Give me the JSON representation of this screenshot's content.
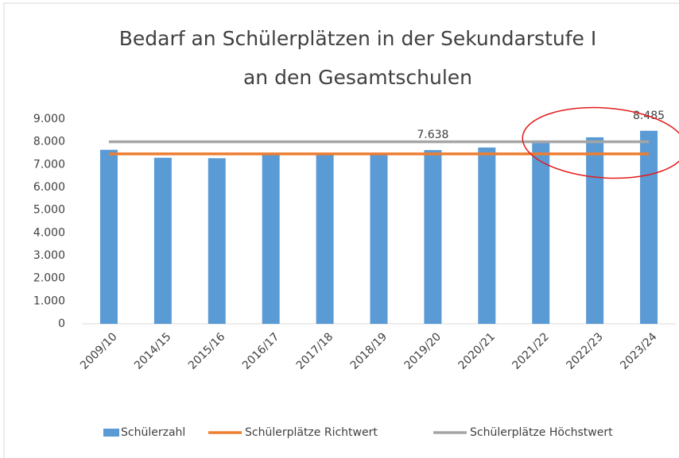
{
  "chart_data": {
    "type": "bar",
    "title": [
      "Bedarf an Schülerplätzen in der Sekundarstufe I",
      "an den Gesamtschulen"
    ],
    "categories": [
      "2009/10",
      "2014/15",
      "2015/16",
      "2016/17",
      "2017/18",
      "2018/19",
      "2019/20",
      "2020/21",
      "2021/22",
      "2022/23",
      "2023/24"
    ],
    "series": [
      {
        "name": "Schülerzahl",
        "type": "bar",
        "color": "#5b9bd5",
        "values": [
          7650,
          7300,
          7280,
          7450,
          7450,
          7450,
          7638,
          7750,
          7950,
          8200,
          8485
        ],
        "value_labels": [
          null,
          null,
          null,
          null,
          null,
          null,
          "7.638",
          null,
          null,
          null,
          "8.485"
        ]
      },
      {
        "name": "Schülerplätze Richtwert",
        "type": "line",
        "color": "#ed7d31",
        "values": [
          7470,
          7470,
          7470,
          7470,
          7470,
          7470,
          7470,
          7470,
          7470,
          7470,
          7470
        ]
      },
      {
        "name": "Schülerplätze Höchstwert",
        "type": "line",
        "color": "#a5a5a5",
        "values": [
          8000,
          8000,
          8000,
          8000,
          8000,
          8000,
          8000,
          8000,
          8000,
          8000,
          8000
        ]
      }
    ],
    "ylim": [
      0,
      9000
    ],
    "yticks": [
      {
        "value": 0,
        "label": "0"
      },
      {
        "value": 1000,
        "label": "1.000"
      },
      {
        "value": 2000,
        "label": "2.000"
      },
      {
        "value": 3000,
        "label": "3.000"
      },
      {
        "value": 4000,
        "label": "4.000"
      },
      {
        "value": 5000,
        "label": "5.000"
      },
      {
        "value": 6000,
        "label": "6.000"
      },
      {
        "value": 7000,
        "label": "7.000"
      },
      {
        "value": 8000,
        "label": "8.000"
      },
      {
        "value": 9000,
        "label": "9.000"
      }
    ],
    "grid": false,
    "legend": "bottom"
  }
}
